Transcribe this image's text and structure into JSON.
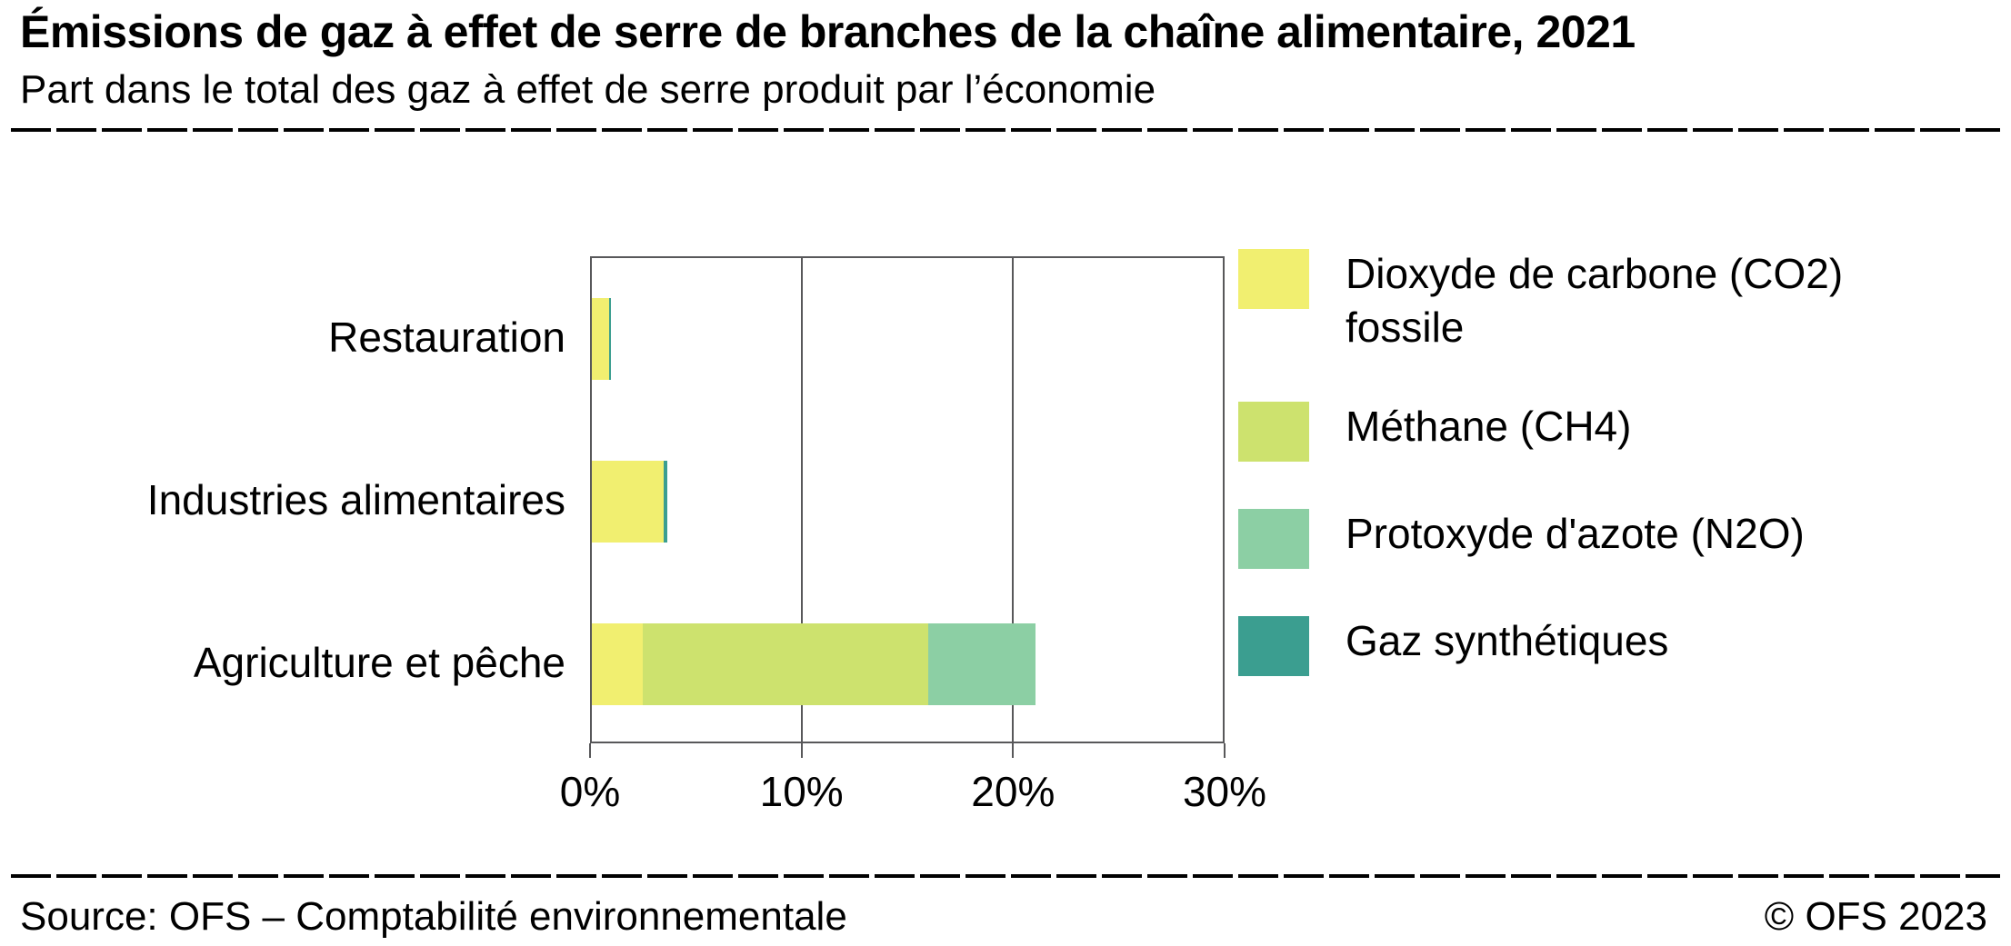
{
  "header": {
    "title": "Émissions de gaz à effet de serre de branches de la chaîne alimentaire, 2021",
    "subtitle": "Part dans le total des gaz à effet de serre produit par l’économie"
  },
  "footer": {
    "source": "Source: OFS – Comptabilité environnementale",
    "copyright": "© OFS 2023"
  },
  "colors": {
    "axis": "#58585a",
    "text": "#000000",
    "background": "#ffffff"
  },
  "chart_data": {
    "type": "bar",
    "orientation": "horizontal",
    "stacked": true,
    "title": "Émissions de gaz à effet de serre de branches de la chaîne alimentaire, 2021",
    "subtitle": "Part dans le total des gaz à effet de serre produit par l’économie",
    "categories": [
      "Restauration",
      "Industries alimentaires",
      "Agriculture et pêche"
    ],
    "series": [
      {
        "name": "Dioxyde de carbone (CO2) fossile",
        "color": "#f1ef70",
        "values": [
          0.8,
          3.4,
          2.4
        ]
      },
      {
        "name": "Méthane (CH4)",
        "color": "#cde26e",
        "values": [
          0,
          0,
          13.6
        ]
      },
      {
        "name": "Protoxyde d'azote (N2O)",
        "color": "#8ccfa4",
        "values": [
          0,
          0,
          5.1
        ]
      },
      {
        "name": "Gaz synthétiques",
        "color": "#3b9e90",
        "values": [
          0.1,
          0.2,
          0
        ]
      }
    ],
    "xlim": [
      0,
      30
    ],
    "x_ticks": [
      "0%",
      "10%",
      "20%",
      "30%"
    ],
    "grid": true,
    "legend_position": "right"
  }
}
